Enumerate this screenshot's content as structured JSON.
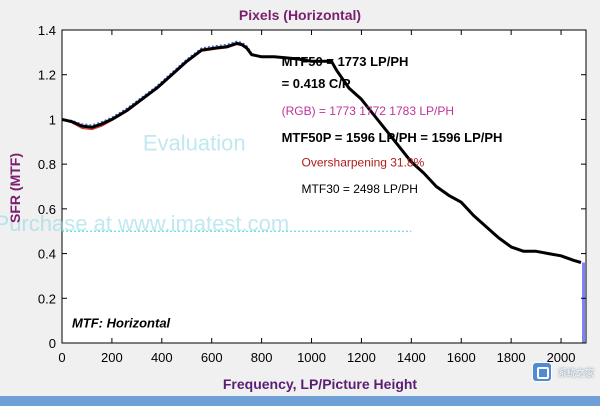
{
  "chart_data": {
    "type": "line",
    "title": "Pixels (Horizontal)",
    "xlabel": "Frequency, LP/Picture Height",
    "ylabel": "SFR (MTF)",
    "xlim": [
      0,
      2100
    ],
    "ylim": [
      0,
      1.4
    ],
    "xticks": [
      0,
      200,
      400,
      600,
      800,
      1000,
      1200,
      1400,
      1600,
      1800,
      2000
    ],
    "yticks": [
      0,
      0.2,
      0.4,
      0.6,
      0.8,
      1,
      1.2,
      1.4
    ],
    "grid": false,
    "series": [
      {
        "color": "#000000",
        "x": [
          0,
          40,
          80,
          120,
          160,
          200,
          260,
          320,
          380,
          440,
          500,
          560,
          620,
          660,
          700,
          720,
          740,
          760,
          800,
          850,
          900,
          950,
          1000,
          1050,
          1080,
          1100,
          1150,
          1200,
          1250,
          1300,
          1350,
          1400,
          1450,
          1500,
          1550,
          1600,
          1650,
          1700,
          1750,
          1800,
          1850,
          1900,
          1950,
          2000,
          2050,
          2080
        ],
        "y": [
          1.0,
          0.99,
          0.97,
          0.965,
          0.98,
          1.0,
          1.04,
          1.09,
          1.14,
          1.2,
          1.26,
          1.31,
          1.32,
          1.325,
          1.34,
          1.335,
          1.32,
          1.29,
          1.28,
          1.28,
          1.275,
          1.27,
          1.26,
          1.26,
          1.26,
          1.22,
          1.14,
          1.09,
          1.02,
          0.95,
          0.88,
          0.81,
          0.76,
          0.7,
          0.66,
          0.63,
          0.57,
          0.52,
          0.47,
          0.43,
          0.41,
          0.41,
          0.4,
          0.39,
          0.37,
          0.36
        ]
      },
      {
        "color": "#e03030",
        "x": [
          0,
          40,
          80,
          120,
          160,
          200,
          260,
          320,
          380,
          440,
          500,
          560,
          620,
          660,
          700,
          720,
          740,
          760
        ],
        "y": [
          1.0,
          0.985,
          0.96,
          0.955,
          0.97,
          0.995,
          1.035,
          1.085,
          1.135,
          1.195,
          1.255,
          1.305,
          1.315,
          1.32,
          1.335,
          1.33,
          1.315,
          1.285
        ]
      },
      {
        "color": "#3060e0",
        "x": [
          0,
          40,
          80,
          120,
          160,
          200,
          260,
          320,
          380,
          440,
          500,
          560,
          620,
          660,
          700,
          720,
          740,
          760
        ],
        "y": [
          1.0,
          0.995,
          0.98,
          0.975,
          0.99,
          1.01,
          1.05,
          1.1,
          1.15,
          1.21,
          1.27,
          1.32,
          1.33,
          1.335,
          1.35,
          1.345,
          1.33,
          1.3
        ]
      }
    ],
    "reference_line": {
      "y": 0.5,
      "color": "#3fd8d8",
      "x_end": 1400
    },
    "nyquist_bar": {
      "x": 2090,
      "from": 0,
      "to": 0.36,
      "color": "#8080ff"
    },
    "annotations": [
      {
        "text": "MTF50 = 1773 LP/PH",
        "color": "#000000",
        "bold": true,
        "x": 880,
        "y": 1.24
      },
      {
        "text": "= 0.418 C/P",
        "color": "#000000",
        "bold": true,
        "x": 880,
        "y": 1.14
      },
      {
        "text": "(RGB) = 1773  1772  1783 LP/PH",
        "color": "#c0329b",
        "bold": false,
        "x": 880,
        "y": 1.02
      },
      {
        "text": "MTF50P = 1596 LP/PH = 1596 LP/PH",
        "color": "#000000",
        "bold": true,
        "x": 880,
        "y": 0.9
      },
      {
        "text": "Oversharpening 31.8%",
        "color": "#b01c1c",
        "bold": false,
        "x": 960,
        "y": 0.79
      },
      {
        "text": "MTF30 = 2498 LP/PH",
        "color": "#000000",
        "bold": false,
        "x": 960,
        "y": 0.67
      },
      {
        "text": "MTF: Horizontal",
        "color": "#000000",
        "bold": true,
        "italic": true,
        "x": 40,
        "y": 0.07
      }
    ],
    "watermarks": [
      {
        "text": "Evaluation",
        "x": 530,
        "y": 0.86
      },
      {
        "text": "Purchase at www.imatest.com",
        "x": 320,
        "y": 0.5
      }
    ]
  },
  "badge": {
    "site_text": "系统之家"
  }
}
